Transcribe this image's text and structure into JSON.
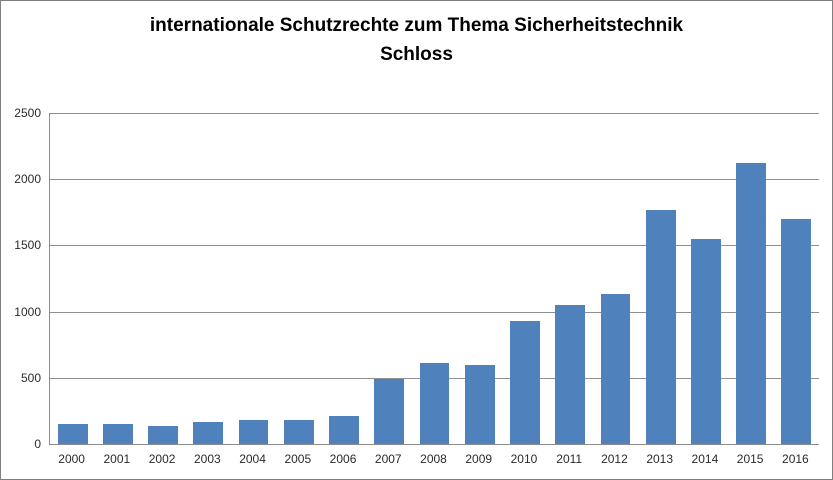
{
  "title": {
    "line1": "internationale Schutzrechte zum Thema Sicherheitstechnik",
    "line2": "Schloss"
  },
  "colors": {
    "bar": "#4f81bd",
    "gridline": "#909090",
    "axis_line": "#8c8c8c",
    "frame_border": "#7f7f7f",
    "tick_text": "#2b2b2b",
    "title_text": "#000000"
  },
  "chart_data": {
    "type": "bar",
    "title": "internationale Schutzrechte zum Thema Sicherheitstechnik Schloss",
    "categories": [
      "2000",
      "2001",
      "2002",
      "2003",
      "2004",
      "2005",
      "2006",
      "2007",
      "2008",
      "2009",
      "2010",
      "2011",
      "2012",
      "2013",
      "2014",
      "2015",
      "2016"
    ],
    "values": [
      150,
      150,
      135,
      170,
      180,
      180,
      210,
      490,
      615,
      600,
      930,
      1050,
      1130,
      1765,
      1545,
      2120,
      1700
    ],
    "series_name": "internationale Schutzrechte",
    "xlabel": "",
    "ylabel": "",
    "ylim": [
      0,
      2500
    ],
    "ytick_interval": 500,
    "ytick_labels": [
      "0",
      "500",
      "1000",
      "1500",
      "2000",
      "2500"
    ],
    "grid": true,
    "legend": false,
    "bar_color": "#4f81bd"
  }
}
